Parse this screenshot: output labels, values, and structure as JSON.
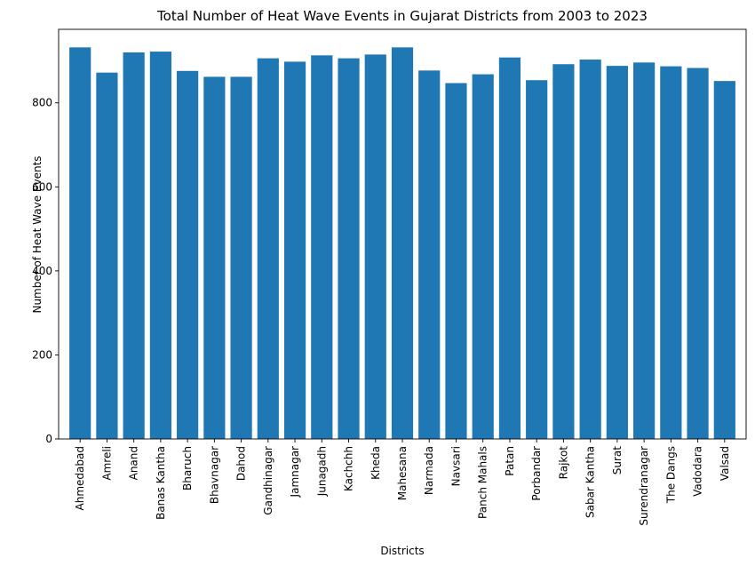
{
  "chart_data": {
    "type": "bar",
    "title": "Total Number of Heat Wave Events in Gujarat Districts from 2003 to 2023",
    "xlabel": "Districts",
    "ylabel": "Number of Heat Wave Events",
    "ylim": [
      0,
      975
    ],
    "yticks": [
      0,
      200,
      400,
      600,
      800
    ],
    "grid": false,
    "legend": "none",
    "bar_color": "#1f77b4",
    "categories": [
      "Ahmedabad",
      "Amreli",
      "Anand",
      "Banas Kantha",
      "Bharuch",
      "Bhavnagar",
      "Dahod",
      "Gandhinagar",
      "Jamnagar",
      "Junagadh",
      "Kachchh",
      "Kheda",
      "Mahesana",
      "Narmada",
      "Navsari",
      "Panch Mahals",
      "Patan",
      "Porbandar",
      "Rajkot",
      "Sabar Kantha",
      "Surat",
      "Surendranagar",
      "The Dangs",
      "Vadodara",
      "Valsad"
    ],
    "values": [
      932,
      872,
      920,
      922,
      876,
      862,
      862,
      906,
      898,
      913,
      906,
      915,
      932,
      877,
      847,
      868,
      908,
      854,
      892,
      903,
      888,
      896,
      887,
      883,
      852
    ]
  }
}
